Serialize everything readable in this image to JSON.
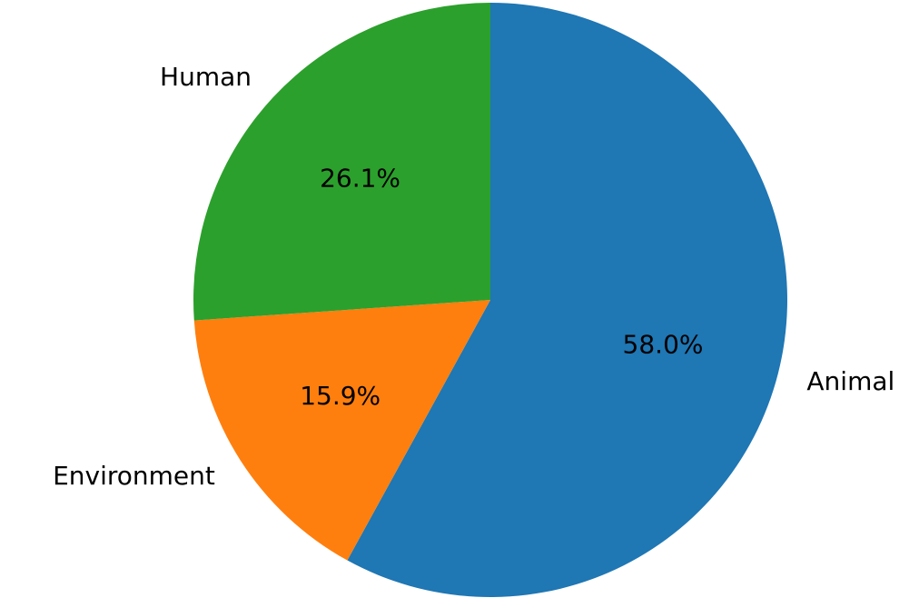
{
  "chart_data": {
    "type": "pie",
    "categories": [
      "Animal",
      "Environment",
      "Human"
    ],
    "values": [
      58.0,
      15.9,
      26.1
    ],
    "percent_labels": [
      "58.0%",
      "15.9%",
      "26.1%"
    ],
    "colors": [
      "#1f77b4",
      "#ff7f0e",
      "#2ca02c"
    ],
    "start_angle_deg": 90,
    "direction": "clockwise",
    "title": "",
    "legend": "none"
  }
}
